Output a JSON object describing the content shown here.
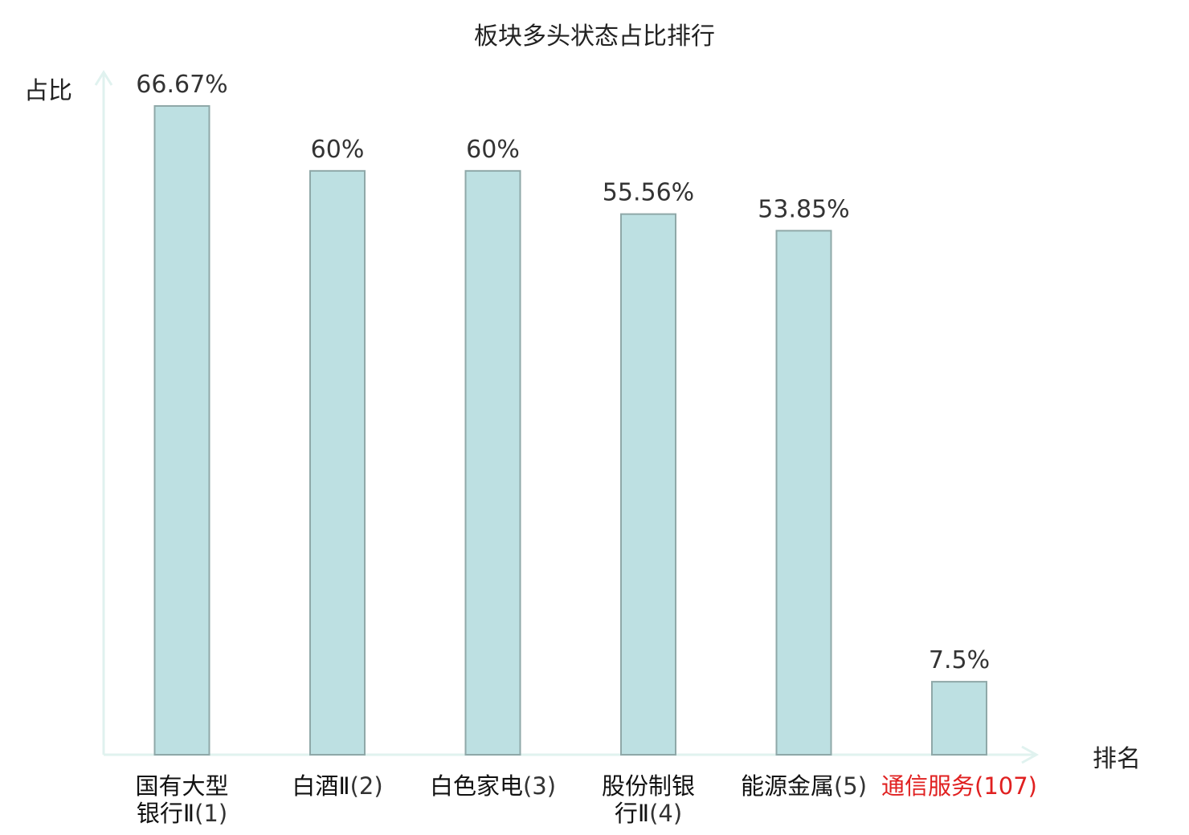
{
  "chart_data": {
    "type": "bar",
    "title": "板块多头状态占比排行",
    "ylabel": "占比",
    "xlabel": "排名",
    "ylim": [
      0,
      70
    ],
    "grid": false,
    "categories": [
      {
        "line1": "国有大型",
        "line2": "银行Ⅱ",
        "rank": "(1)"
      },
      {
        "line1": "白酒Ⅱ",
        "line2": "",
        "rank": "(2)"
      },
      {
        "line1": "白色家电",
        "line2": "",
        "rank": "(3)"
      },
      {
        "line1": "股份制银",
        "line2": "行Ⅱ",
        "rank": "(4)"
      },
      {
        "line1": "能源金属",
        "line2": "",
        "rank": "(5)"
      },
      {
        "line1": "通信服务",
        "line2": "",
        "rank": "(107)"
      }
    ],
    "values": [
      66.67,
      60,
      60,
      55.56,
      53.85,
      7.5
    ],
    "value_labels": [
      "66.67%",
      "60%",
      "60%",
      "55.56%",
      "53.85%",
      "7.5%"
    ],
    "highlight_index": 5,
    "colors": {
      "bar_fill": "#bde0e2",
      "bar_stroke": "#8fa8a8",
      "axis": "#e0f2ef",
      "highlight_text": "#e02020"
    }
  }
}
